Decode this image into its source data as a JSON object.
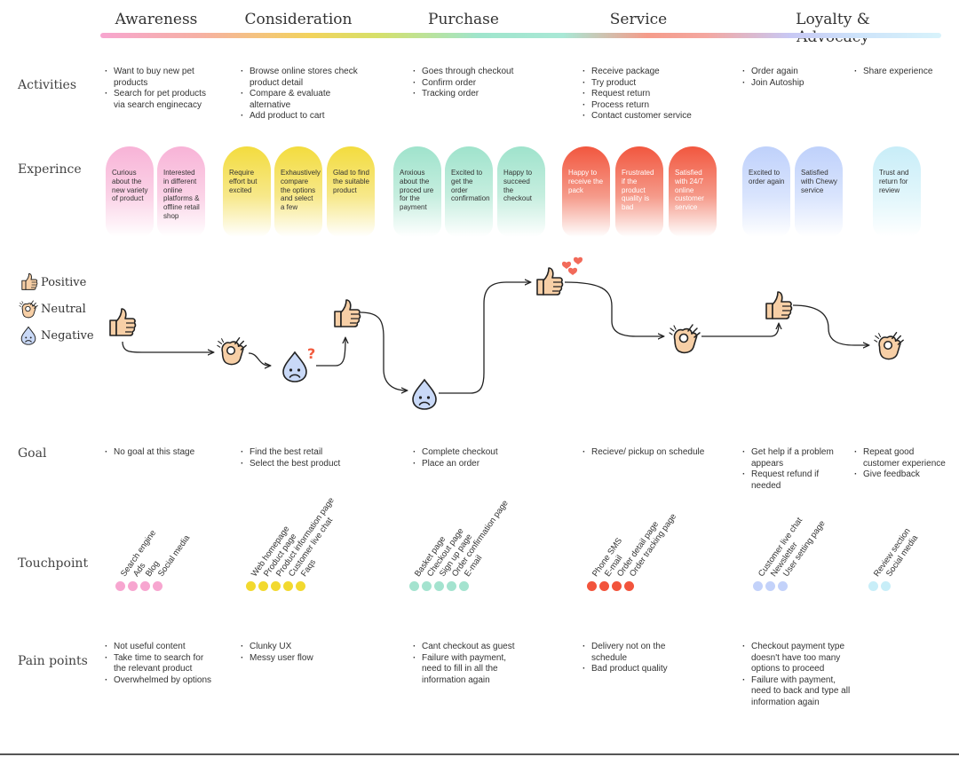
{
  "stages": [
    "Awareness",
    "Consideration",
    "Purchase",
    "Service",
    "Loyalty & Advocacy"
  ],
  "row_labels": {
    "activities": "Activities",
    "experience": "Experince",
    "goal": "Goal",
    "touchpoint": "Touchpoint",
    "pain_points": "Pain points"
  },
  "legend": {
    "positive": "Positive",
    "neutral": "Neutral",
    "negative": "Negative"
  },
  "activities": {
    "awareness": [
      "Want to buy new pet products",
      "Search for pet products via search enginecacy"
    ],
    "consideration": [
      "Browse online stores check product detail",
      "Compare & evaluate alternative",
      "Add product to cart"
    ],
    "purchase": [
      "Goes through checkout",
      "Confirm order",
      "Tracking order"
    ],
    "service": [
      "Receive package",
      "Try product",
      "Request return",
      "Process return",
      "Contact customer service"
    ],
    "loyalty": [
      "Order again",
      "Join Autoship"
    ],
    "advocacy": [
      "Share experience"
    ]
  },
  "experience": {
    "awareness": [
      "Curious about the new variety of product",
      "Interested in different online platforms & offline retail shop"
    ],
    "consideration": [
      "Require effort but excited",
      "Exhaustively compare the options and select a few",
      "Glad to find the suitable product"
    ],
    "purchase": [
      "Anxious about the proced ure for the payment",
      "Excited to get the order confirmation",
      "Happy to succeed the checkout"
    ],
    "service": [
      "Happy to receive the pack",
      "Frustrated if the product quality is bad",
      "Satisfied with 24/7 online customer service"
    ],
    "loyalty": [
      "Excited to order again",
      "Satisfied with Chewy service"
    ],
    "advocacy": [
      "Trust and return for review"
    ]
  },
  "emotion_journey": {
    "points": [
      {
        "state": "positive",
        "icon": "thumbs-up-icon"
      },
      {
        "state": "neutral",
        "icon": "ok-hand-icon"
      },
      {
        "state": "negative",
        "icon": "sad-drop-icon",
        "annotation": "?"
      },
      {
        "state": "positive",
        "icon": "thumbs-up-icon"
      },
      {
        "state": "negative",
        "icon": "sad-drop-icon"
      },
      {
        "state": "positive",
        "icon": "thumbs-up-icon",
        "annotation": "hearts"
      },
      {
        "state": "neutral",
        "icon": "ok-hand-icon"
      },
      {
        "state": "positive",
        "icon": "thumbs-up-icon"
      },
      {
        "state": "neutral",
        "icon": "ok-hand-icon"
      }
    ]
  },
  "goal": {
    "awareness": [
      "No goal at this stage"
    ],
    "consideration": [
      "Find the best retail",
      "Select the best product"
    ],
    "purchase": [
      "Complete checkout",
      "Place an order"
    ],
    "service": [
      "Recieve/ pickup on schedule"
    ],
    "loyalty": [
      "Get help if a problem appears",
      "Request refund if needed"
    ],
    "advocacy": [
      "Repeat good customer experience",
      "Give feedback"
    ]
  },
  "touchpoints": {
    "awareness": {
      "color": "#f7a6d0",
      "items": [
        "Search engine",
        "Ads",
        "Blog",
        "Social media"
      ]
    },
    "consideration": {
      "color": "#f2d92f",
      "items": [
        "Web homepage",
        "Product page",
        "Product information page",
        "Customer live chat",
        "Faqs"
      ]
    },
    "purchase": {
      "color": "#a4e3cf",
      "items": [
        "Basket page",
        "Checkout page",
        "Sign up page",
        "Order confirmation page",
        "E-mail"
      ]
    },
    "service": {
      "color": "#f2543c",
      "items": [
        "Phone SMS",
        "E-mail",
        "Order detail page",
        "Order tracking page"
      ]
    },
    "loyalty": {
      "color": "#c3d2fa",
      "items": [
        "Customer live chat",
        "Newsletter",
        "User setting page"
      ]
    },
    "advocacy": {
      "color": "#c8eef8",
      "items": [
        "Review section",
        "Social media"
      ]
    }
  },
  "pain_points": {
    "awareness": [
      "Not useful content",
      "Take time to search for the relevant product",
      "Overwhelmed by options"
    ],
    "consideration": [
      "Clunky UX",
      "Messy user flow"
    ],
    "purchase": [
      "Cant checkout as guest",
      "Failure with payment, need to fill in all the information again"
    ],
    "service": [
      "Delivery not on the schedule",
      "Bad product quality"
    ],
    "loyalty": [
      "Checkout payment type doesn't have too many options to proceed",
      "Failure with payment, need to back and type all information again"
    ]
  },
  "colors": {
    "awareness": "#f7a6d0",
    "consideration": "#f2d92f",
    "purchase": "#a4e3cf",
    "service": "#f2543c",
    "loyalty": "#c3d2fa",
    "advocacy": "#c8eef8",
    "negative_icon": "#c9d9f7",
    "hand": "#f7cfa6"
  }
}
